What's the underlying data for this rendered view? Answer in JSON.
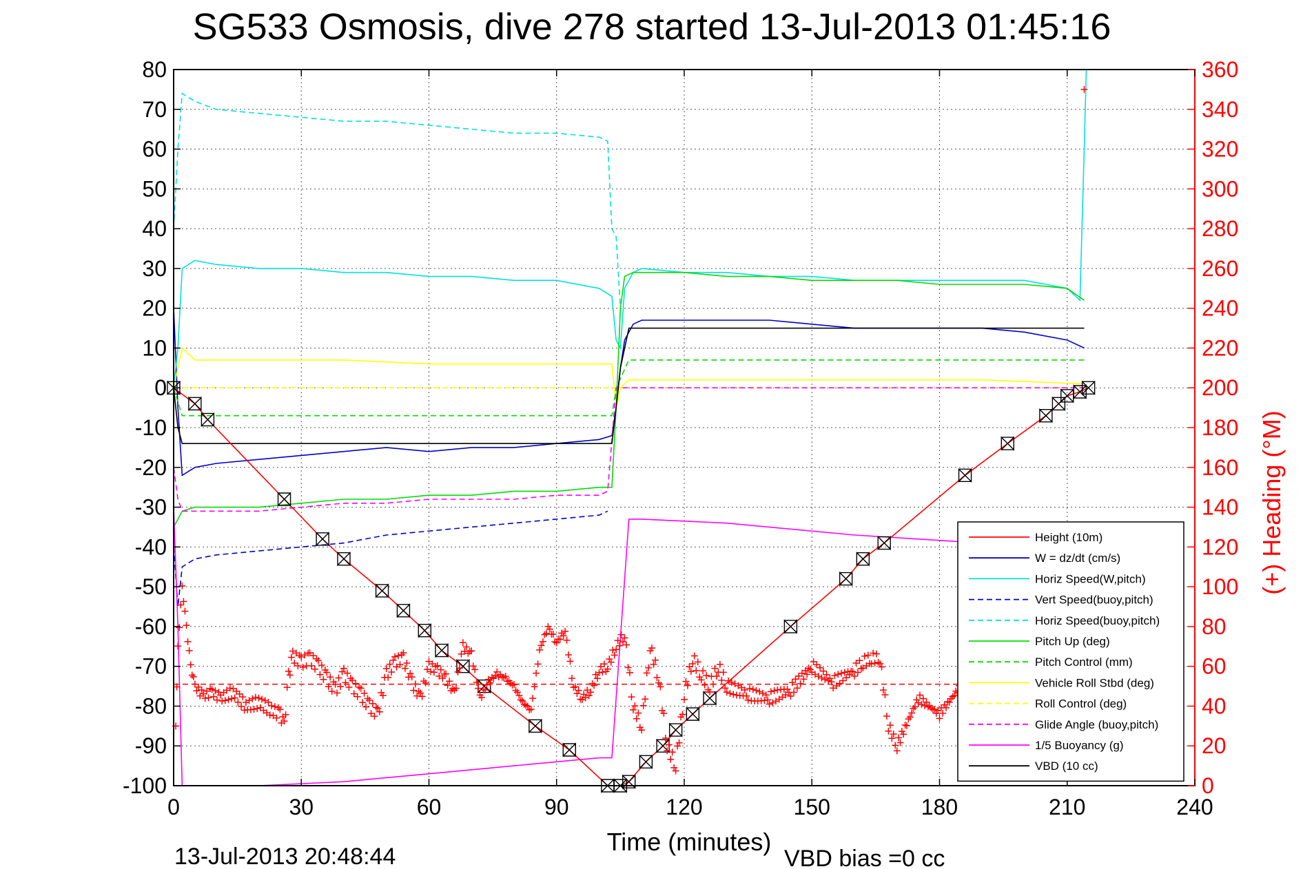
{
  "chart_data": {
    "type": "line",
    "title": "SG533 Osmosis, dive 278 started 13-Jul-2013 01:45:16",
    "xlabel": "Time (minutes)",
    "ylabel": "",
    "y2label": "(+) Heading (°M)",
    "footer_left": "13-Jul-2013 20:48:44",
    "footer_right": "VBD bias =0 cc",
    "xlim": [
      0,
      240
    ],
    "ylim": [
      -100,
      80
    ],
    "y2lim": [
      0,
      360
    ],
    "grid": true,
    "legend_position": "bottom-right",
    "x_ticks": [
      "0",
      "30",
      "60",
      "90",
      "120",
      "150",
      "180",
      "210",
      "240"
    ],
    "y_ticks": [
      "80",
      "70",
      "60",
      "50",
      "40",
      "30",
      "20",
      "10",
      "0",
      "-10",
      "-20",
      "-30",
      "-40",
      "-50",
      "-60",
      "-70",
      "-80",
      "-90",
      "-100"
    ],
    "y2_ticks": [
      "360",
      "340",
      "320",
      "300",
      "280",
      "260",
      "240",
      "220",
      "200",
      "180",
      "160",
      "140",
      "120",
      "100",
      "80",
      "60",
      "40",
      "20",
      "0"
    ],
    "series": [
      {
        "name": "Height (10m)",
        "color": "#ff0000",
        "style": "solid",
        "marker": "bowtie",
        "x": [
          0,
          5,
          8,
          26,
          35,
          40,
          49,
          54,
          59,
          63,
          68,
          73,
          85,
          93,
          102,
          105,
          107,
          111,
          115,
          118,
          122,
          126,
          145,
          158,
          162,
          167,
          186,
          196,
          205,
          208,
          210,
          213,
          215
        ],
        "y": [
          0,
          -4,
          -8,
          -28,
          -38,
          -43,
          -51,
          -56,
          -61,
          -66,
          -70,
          -75,
          -85,
          -91,
          -100,
          -100,
          -99,
          -94,
          -90,
          -86,
          -82,
          -78,
          -60,
          -48,
          -43,
          -39,
          -22,
          -14,
          -7,
          -4,
          -2,
          -1,
          0
        ]
      },
      {
        "name": "W = dz/dt (cm/s)",
        "color": "#0000cc",
        "style": "solid",
        "marker": "none",
        "x": [
          0,
          1,
          2,
          5,
          10,
          20,
          30,
          40,
          50,
          60,
          70,
          80,
          90,
          100,
          103,
          104,
          105,
          106,
          108,
          110,
          120,
          130,
          140,
          150,
          160,
          170,
          180,
          190,
          200,
          210,
          214
        ],
        "y": [
          20,
          -5,
          -22,
          -20,
          -19,
          -18,
          -17,
          -16,
          -15,
          -16,
          -15,
          -15,
          -14,
          -13,
          -12,
          -5,
          5,
          12,
          16,
          17,
          17,
          17,
          17,
          16,
          15,
          15,
          15,
          15,
          14,
          12,
          10
        ]
      },
      {
        "name": "Horiz Speed(W,pitch)",
        "color": "#00e0e0",
        "style": "solid",
        "marker": "none",
        "x": [
          0,
          1,
          2,
          5,
          10,
          20,
          30,
          40,
          50,
          60,
          70,
          80,
          90,
          100,
          103,
          104,
          105,
          106,
          108,
          110,
          120,
          130,
          140,
          150,
          160,
          170,
          180,
          190,
          200,
          210,
          213,
          214,
          214.5
        ],
        "y": [
          0,
          10,
          30,
          32,
          31,
          30,
          30,
          29,
          29,
          28,
          28,
          27,
          27,
          25,
          23,
          12,
          10,
          25,
          29,
          30,
          29,
          29,
          28,
          28,
          27,
          27,
          27,
          27,
          27,
          25,
          22,
          60,
          80
        ]
      },
      {
        "name": "Vert Speed(buoy,pitch)",
        "color": "#0000cc",
        "style": "dashed",
        "marker": "none",
        "x": [
          0,
          1,
          2,
          5,
          10,
          20,
          30,
          40,
          50,
          60,
          70,
          80,
          90,
          100,
          102
        ],
        "y": [
          -40,
          -55,
          -45,
          -43,
          -42,
          -41,
          -40,
          -39,
          -37,
          -36,
          -35,
          -34,
          -33,
          -32,
          -31
        ]
      },
      {
        "name": "Horiz Speed(buoy,pitch)",
        "color": "#00e0e0",
        "style": "dashed",
        "marker": "none",
        "x": [
          0,
          1,
          2,
          5,
          10,
          20,
          30,
          40,
          50,
          60,
          70,
          80,
          90,
          100,
          102,
          103,
          104,
          105
        ],
        "y": [
          40,
          60,
          74,
          72,
          70,
          69,
          68,
          67,
          67,
          66,
          65,
          64,
          64,
          63,
          62,
          40,
          38,
          20
        ]
      },
      {
        "name": "Pitch Up (deg)",
        "color": "#00dd00",
        "style": "solid",
        "marker": "none",
        "x": [
          0,
          1,
          2,
          5,
          10,
          20,
          30,
          40,
          50,
          60,
          70,
          80,
          90,
          100,
          103,
          104,
          105,
          106,
          108,
          110,
          120,
          130,
          140,
          150,
          160,
          170,
          180,
          190,
          200,
          210,
          214
        ],
        "y": [
          -35,
          -33,
          -31,
          -30,
          -30,
          -30,
          -29,
          -28,
          -28,
          -27,
          -27,
          -26,
          -26,
          -25,
          -25,
          -5,
          20,
          28,
          29,
          29,
          29,
          28,
          28,
          27,
          27,
          27,
          26,
          26,
          26,
          25,
          22
        ]
      },
      {
        "name": "Pitch Control (mm)",
        "color": "#00dd00",
        "style": "dashed",
        "marker": "none",
        "x": [
          0,
          2,
          5,
          30,
          60,
          90,
          103,
          104,
          107,
          150,
          214
        ],
        "y": [
          0,
          -7,
          -7,
          -7,
          -7,
          -7,
          -7,
          0,
          7,
          7,
          7
        ]
      },
      {
        "name": "Vehicle Roll Stbd (deg)",
        "color": "#ffff00",
        "style": "solid",
        "marker": "none",
        "x": [
          0,
          2,
          5,
          20,
          40,
          60,
          80,
          100,
          103,
          104,
          105,
          107,
          130,
          160,
          190,
          214
        ],
        "y": [
          0,
          10,
          7,
          7,
          7,
          6,
          6,
          6,
          6,
          -5,
          0,
          2,
          2,
          2,
          2,
          1
        ]
      },
      {
        "name": "Roll Control (deg)",
        "color": "#ffff00",
        "style": "dashed",
        "marker": "none",
        "x": [
          0,
          2,
          5,
          30,
          60,
          90,
          103,
          104,
          107,
          150,
          214
        ],
        "y": [
          0,
          0,
          0,
          0,
          0,
          0,
          0,
          0,
          0,
          0,
          0
        ]
      },
      {
        "name": "Glide Angle (buoy,pitch)",
        "color": "#ff00ff",
        "style": "dashed",
        "marker": "none",
        "x": [
          0,
          1,
          2,
          5,
          10,
          20,
          30,
          40,
          50,
          60,
          70,
          80,
          90,
          100,
          102,
          104,
          107,
          150,
          214
        ],
        "y": [
          -20,
          -28,
          -31,
          -31,
          -31,
          -31,
          -30,
          -29,
          -29,
          -28,
          -28,
          -28,
          -27,
          -27,
          -26,
          0,
          0,
          0,
          0
        ]
      },
      {
        "name": "1/5 Buoyancy (g)",
        "color": "#ff00ff",
        "style": "solid",
        "marker": "none",
        "x": [
          0,
          1,
          2,
          20,
          40,
          60,
          80,
          90,
          100,
          103,
          107,
          110,
          130,
          160,
          175,
          190,
          200,
          210,
          214
        ],
        "y": [
          -30,
          -60,
          -100,
          -100,
          -99,
          -97,
          -95,
          -94,
          -93,
          -93,
          -33,
          -33,
          -34,
          -37,
          -38,
          -39,
          -39,
          -39,
          -39
        ]
      },
      {
        "name": "VBD (10 cc)",
        "color": "#000000",
        "style": "solid",
        "marker": "none",
        "x": [
          0,
          1,
          2,
          103,
          104,
          105,
          107,
          214
        ],
        "y": [
          0,
          -10,
          -14,
          -14,
          -5,
          5,
          15,
          15
        ]
      }
    ],
    "heading_series": {
      "color": "#ff0000",
      "marker": "plus",
      "axis": "right",
      "mean_heading": 51,
      "x": [
        0.5,
        1,
        2,
        3,
        4,
        5,
        7,
        9,
        11,
        14,
        17,
        20,
        23,
        25,
        26,
        27,
        28,
        30,
        32,
        34,
        36,
        38,
        40,
        42,
        44,
        46,
        48,
        50,
        52,
        54,
        56,
        58,
        60,
        62,
        64,
        66,
        68,
        70,
        72,
        74,
        76,
        78,
        80,
        82,
        84,
        86,
        88,
        90,
        92,
        94,
        96,
        98,
        100,
        102,
        104,
        106,
        108,
        110,
        112,
        114,
        116,
        118,
        120,
        122,
        124,
        126,
        128,
        130,
        135,
        140,
        145,
        150,
        155,
        160,
        162,
        164,
        166,
        168,
        170,
        175,
        180,
        185,
        190,
        195,
        200,
        205,
        210,
        213,
        214
      ],
      "y": [
        30,
        70,
        100,
        80,
        60,
        50,
        45,
        47,
        44,
        47,
        40,
        42,
        38,
        36,
        30,
        55,
        65,
        62,
        64,
        60,
        54,
        48,
        56,
        50,
        46,
        40,
        36,
        56,
        62,
        64,
        52,
        44,
        60,
        58,
        54,
        46,
        70,
        66,
        44,
        52,
        56,
        54,
        50,
        42,
        38,
        68,
        80,
        72,
        78,
        50,
        44,
        48,
        58,
        60,
        70,
        76,
        40,
        30,
        70,
        54,
        20,
        10,
        46,
        64,
        56,
        50,
        60,
        50,
        46,
        44,
        48,
        60,
        52,
        58,
        62,
        64,
        64,
        30,
        20,
        44,
        36,
        50,
        40,
        38,
        40,
        48,
        42,
        46,
        48
      ]
    },
    "heading_outlier": {
      "x": 214,
      "y": 350
    }
  }
}
